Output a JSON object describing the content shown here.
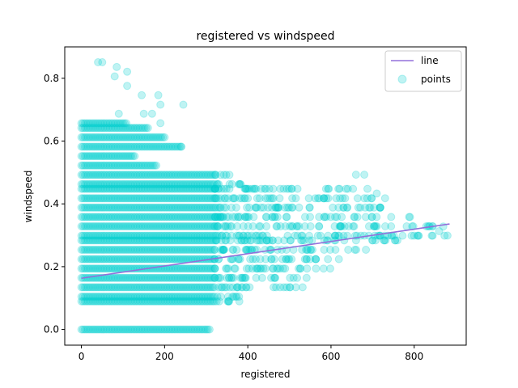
{
  "chart_data": {
    "type": "scatter",
    "title": "registered vs windspeed",
    "xlabel": "registered",
    "ylabel": "windspeed",
    "xlim": [
      -40,
      925
    ],
    "ylim": [
      -0.05,
      0.9
    ],
    "x_ticks": [
      0,
      200,
      400,
      600,
      800
    ],
    "x_tick_labels": [
      "0",
      "200",
      "400",
      "600",
      "800"
    ],
    "y_ticks": [
      0.0,
      0.2,
      0.4,
      0.6,
      0.8
    ],
    "y_tick_labels": [
      "0.0",
      "0.2",
      "0.4",
      "0.6",
      "0.8"
    ],
    "grid": false,
    "legend": {
      "position": "top-right",
      "entries": [
        "line",
        "points"
      ]
    },
    "series": [
      {
        "name": "points",
        "kind": "scatter",
        "color": "#00ced1",
        "alpha": 0.25,
        "windspeed_levels": [
          0.0,
          0.0896,
          0.1045,
          0.1343,
          0.1642,
          0.194,
          0.2239,
          0.2537,
          0.2836,
          0.2985,
          0.3284,
          0.3582,
          0.3881,
          0.4179,
          0.4478,
          0.4627,
          0.4925,
          0.5224,
          0.5522,
          0.5821,
          0.6119,
          0.6418,
          0.6567
        ],
        "level_ranges": [
          [
            0,
            310
          ],
          [
            0,
            380
          ],
          [
            0,
            390
          ],
          [
            0,
            540
          ],
          [
            0,
            560
          ],
          [
            0,
            600
          ],
          [
            0,
            620
          ],
          [
            0,
            700
          ],
          [
            0,
            770
          ],
          [
            0,
            880
          ],
          [
            0,
            850
          ],
          [
            0,
            800
          ],
          [
            0,
            740
          ],
          [
            0,
            720
          ],
          [
            0,
            700
          ],
          [
            0,
            400
          ],
          [
            0,
            370
          ],
          [
            0,
            180
          ],
          [
            0,
            130
          ],
          [
            0,
            240
          ],
          [
            0,
            200
          ],
          [
            0,
            160
          ],
          [
            0,
            110
          ]
        ],
        "outliers": [
          [
            40,
            0.851
          ],
          [
            50,
            0.851
          ],
          [
            85,
            0.836
          ],
          [
            110,
            0.821
          ],
          [
            80,
            0.806
          ],
          [
            110,
            0.776
          ],
          [
            145,
            0.746
          ],
          [
            185,
            0.746
          ],
          [
            190,
            0.716
          ],
          [
            245,
            0.716
          ],
          [
            90,
            0.687
          ],
          [
            150,
            0.687
          ],
          [
            170,
            0.687
          ],
          [
            190,
            0.657
          ],
          [
            240,
            0.582
          ],
          [
            660,
            0.493
          ],
          [
            680,
            0.493
          ],
          [
            730,
            0.418
          ],
          [
            710,
            0.433
          ],
          [
            790,
            0.358
          ],
          [
            870,
            0.328
          ],
          [
            860,
            0.313
          ],
          [
            880,
            0.299
          ]
        ]
      },
      {
        "name": "line",
        "kind": "line",
        "color": "#9370db",
        "x": [
          0,
          885
        ],
        "y": [
          0.163,
          0.336
        ]
      }
    ]
  }
}
